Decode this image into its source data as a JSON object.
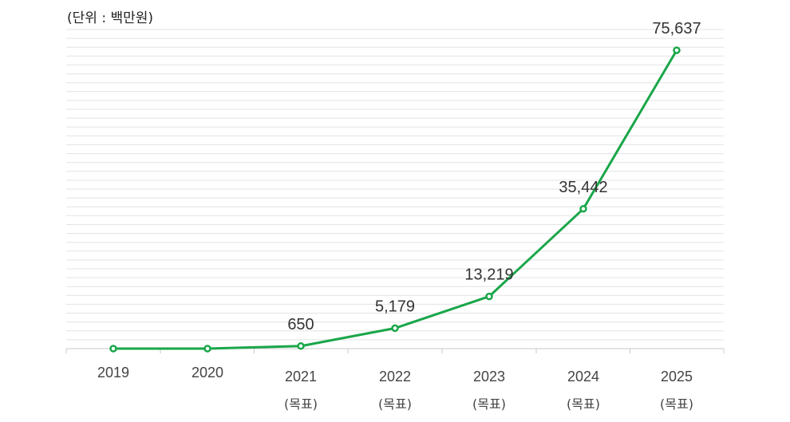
{
  "chart_data": {
    "type": "line",
    "unit_label": "(단위 : 백만원)",
    "categories": [
      "2019",
      "2020",
      "2021",
      "2022",
      "2023",
      "2024",
      "2025"
    ],
    "sublabels": [
      "",
      "",
      "(목표)",
      "(목표)",
      "(목표)",
      "(목표)",
      "(목표)"
    ],
    "values": [
      0,
      0,
      650,
      5179,
      13219,
      35442,
      75637
    ],
    "data_labels": [
      "",
      "",
      "650",
      "5,179",
      "13,219",
      "35,442",
      "75,637"
    ],
    "grid": true,
    "legend": "none",
    "line_color": "#1aa64a",
    "grid_color": "#e3e3e3"
  }
}
